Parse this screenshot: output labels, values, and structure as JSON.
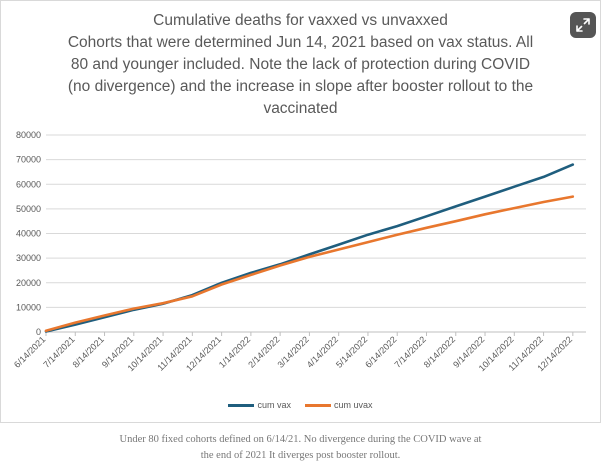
{
  "title_lines": [
    "Cumulative deaths for vaxxed vs unvaxxed",
    "Cohorts that were determined Jun 14, 2021 based on vax status. All",
    "80 and younger included. Note the lack of protection during COVID",
    "(no divergence) and the increase in slope after booster rollout to the",
    "vaccinated"
  ],
  "caption_lines": [
    "Under 80 fixed cohorts defined on 6/14/21. No divergence during the COVID wave at",
    "the end of 2021 It diverges post booster rollout."
  ],
  "expand_icon": "expand-diagonal-arrows-icon",
  "chart_data": {
    "type": "line",
    "title": "Cumulative deaths for vaxxed vs unvaxxed Cohorts that were determined Jun 14, 2021 based on vax status. All 80 and younger included. Note the lack of protection during COVID (no divergence) and the increase in slope after booster rollout to the vaccinated",
    "categories": [
      "6/14/2021",
      "7/14/2021",
      "8/14/2021",
      "9/14/2021",
      "10/14/2021",
      "11/14/2021",
      "12/14/2021",
      "1/14/2022",
      "2/14/2022",
      "3/14/2022",
      "4/14/2022",
      "5/14/2022",
      "6/14/2022",
      "7/14/2022",
      "8/14/2022",
      "9/14/2022",
      "10/14/2022",
      "11/14/2022",
      "12/14/2022"
    ],
    "x_end": "1/1/2023",
    "ylim": [
      0,
      80000
    ],
    "yticks": [
      0,
      10000,
      20000,
      30000,
      40000,
      50000,
      60000,
      70000,
      80000
    ],
    "grid": true,
    "legend_position": "bottom",
    "series": [
      {
        "name": "cum vax",
        "color": "#1f5e7e",
        "values": [
          200,
          3000,
          6000,
          9000,
          11500,
          15000,
          20000,
          24000,
          27500,
          31500,
          35500,
          39500,
          43000,
          47000,
          51000,
          55000,
          59000,
          63000,
          68000
        ]
      },
      {
        "name": "cum uvax",
        "color": "#e8772e",
        "values": [
          500,
          3800,
          6700,
          9500,
          11700,
          14500,
          19300,
          23200,
          27000,
          30500,
          33500,
          36500,
          39500,
          42300,
          45000,
          47800,
          50300,
          52800,
          55000
        ]
      }
    ]
  }
}
